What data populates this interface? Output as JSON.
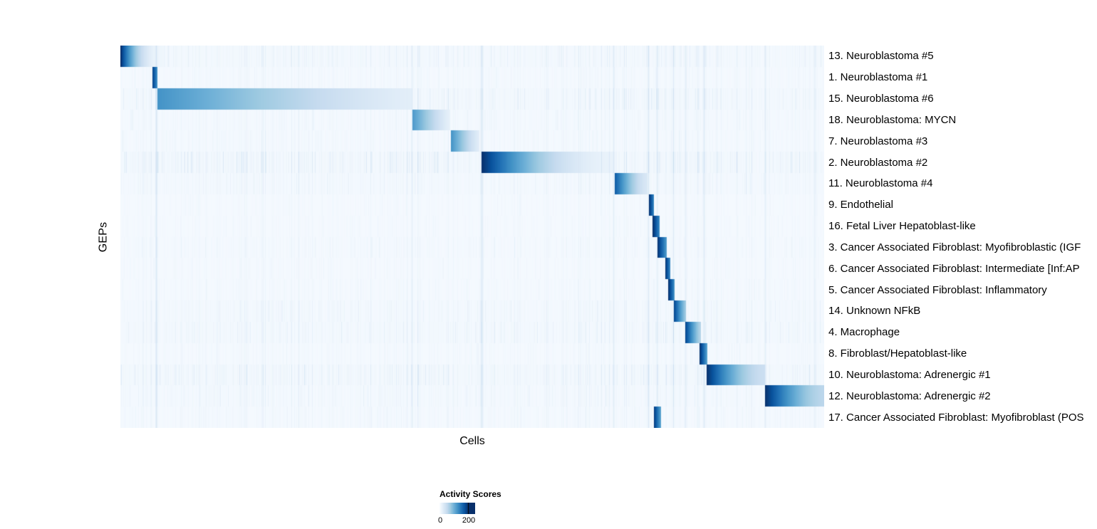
{
  "chart_data": {
    "type": "heatmap",
    "title": "",
    "xlabel": "Cells",
    "ylabel": "GEPs",
    "legend_position": "bottom-left",
    "grid": false,
    "colorbar": {
      "title": "Activity Scores",
      "min": 0,
      "max": 200,
      "min_label": "0",
      "max_label": "200",
      "max_pos": 0.82
    },
    "colormap_stops": [
      [
        0.0,
        "#f7fbff"
      ],
      [
        0.125,
        "#deebf7"
      ],
      [
        0.25,
        "#c6dbef"
      ],
      [
        0.375,
        "#9ecae1"
      ],
      [
        0.5,
        "#6baed6"
      ],
      [
        0.625,
        "#4292c6"
      ],
      [
        0.75,
        "#2171b5"
      ],
      [
        0.875,
        "#08519c"
      ],
      [
        1.0,
        "#08306b"
      ]
    ],
    "global_stripes": [
      {
        "pos": 0.0505,
        "strength": 0.28,
        "width": 1
      },
      {
        "pos": 0.414,
        "strength": 0.12,
        "width": 1
      },
      {
        "pos": 0.513,
        "strength": 0.22,
        "width": 2
      },
      {
        "pos": 0.7,
        "strength": 0.18,
        "width": 1
      },
      {
        "pos": 0.7505,
        "strength": 0.18,
        "width": 1
      },
      {
        "pos": 0.762,
        "strength": 0.14,
        "width": 1
      },
      {
        "pos": 0.7855,
        "strength": 0.14,
        "width": 1
      },
      {
        "pos": 0.8025,
        "strength": 0.14,
        "width": 1
      },
      {
        "pos": 0.829,
        "strength": 0.2,
        "width": 1
      },
      {
        "pos": 0.9155,
        "strength": 0.16,
        "width": 1
      },
      {
        "pos": 0.986,
        "strength": 0.12,
        "width": 1
      }
    ],
    "rows": [
      {
        "label": "13. Neuroblastoma #5",
        "start": 0.0,
        "end": 0.062,
        "peak": 1.0,
        "tail": 0.04,
        "pow": 2.4,
        "noise": 0.3
      },
      {
        "label": "1. Neuroblastoma #1",
        "start": 0.0455,
        "end": 0.052,
        "peak": 0.92,
        "tail": 0.6,
        "pow": 0.8,
        "noise": 0.15
      },
      {
        "label": "15. Neuroblastoma #6",
        "start": 0.0525,
        "end": 0.414,
        "peak": 0.62,
        "tail": 0.1,
        "pow": 1.25,
        "noise": 0.35
      },
      {
        "label": "18. Neuroblastoma: MYCN",
        "start": 0.414,
        "end": 0.468,
        "peak": 0.6,
        "tail": 0.08,
        "pow": 1.2,
        "noise": 0.2
      },
      {
        "label": "7. Neuroblastoma #3",
        "start": 0.4695,
        "end": 0.51,
        "peak": 0.62,
        "tail": 0.1,
        "pow": 1.2,
        "noise": 0.18
      },
      {
        "label": "2. Neuroblastoma #2",
        "start": 0.513,
        "end": 0.7,
        "peak": 1.0,
        "tail": 0.07,
        "pow": 2.0,
        "noise": 0.45
      },
      {
        "label": "11. Neuroblastoma #4",
        "start": 0.7015,
        "end": 0.748,
        "peak": 0.85,
        "tail": 0.15,
        "pow": 1.5,
        "noise": 0.25
      },
      {
        "label": "9. Endothelial",
        "start": 0.7505,
        "end": 0.758,
        "peak": 1.0,
        "tail": 0.6,
        "pow": 0.8,
        "noise": 0.12
      },
      {
        "label": "16. Fetal Liver Hepatoblast-like",
        "start": 0.756,
        "end": 0.766,
        "peak": 1.0,
        "tail": 0.6,
        "pow": 0.8,
        "noise": 0.12
      },
      {
        "label": "3. Cancer Associated Fibroblast: Myofibroblastic (IGF",
        "start": 0.7625,
        "end": 0.776,
        "peak": 1.0,
        "tail": 0.55,
        "pow": 0.9,
        "noise": 0.18
      },
      {
        "label": "6. Cancer Associated Fibroblast: Intermediate [Inf:AP",
        "start": 0.7735,
        "end": 0.781,
        "peak": 1.0,
        "tail": 0.6,
        "pow": 0.8,
        "noise": 0.12
      },
      {
        "label": "5. Cancer Associated Fibroblast: Inflammatory",
        "start": 0.778,
        "end": 0.7865,
        "peak": 1.0,
        "tail": 0.6,
        "pow": 0.8,
        "noise": 0.15
      },
      {
        "label": "14. Unknown NFkB",
        "start": 0.7855,
        "end": 0.8035,
        "peak": 0.95,
        "tail": 0.35,
        "pow": 1.2,
        "noise": 0.25
      },
      {
        "label": "4. Macrophage",
        "start": 0.8025,
        "end": 0.824,
        "peak": 0.92,
        "tail": 0.3,
        "pow": 1.2,
        "noise": 0.3
      },
      {
        "label": "8. Fibroblast/Hepatoblast-like",
        "start": 0.8225,
        "end": 0.833,
        "peak": 1.0,
        "tail": 0.55,
        "pow": 0.9,
        "noise": 0.15
      },
      {
        "label": "10. Neuroblastoma: Adrenergic #1",
        "start": 0.8325,
        "end": 0.9155,
        "peak": 1.0,
        "tail": 0.22,
        "pow": 1.7,
        "noise": 0.4
      },
      {
        "label": "12. Neuroblastoma: Adrenergic #2",
        "start": 0.9155,
        "end": 1.0,
        "peak": 1.0,
        "tail": 0.28,
        "pow": 1.6,
        "noise": 0.25
      },
      {
        "label": "17. Cancer Associated Fibroblast: Myofibroblast (POS",
        "start": 0.758,
        "end": 0.768,
        "peak": 0.95,
        "tail": 0.5,
        "pow": 0.9,
        "noise": 0.18
      }
    ]
  }
}
